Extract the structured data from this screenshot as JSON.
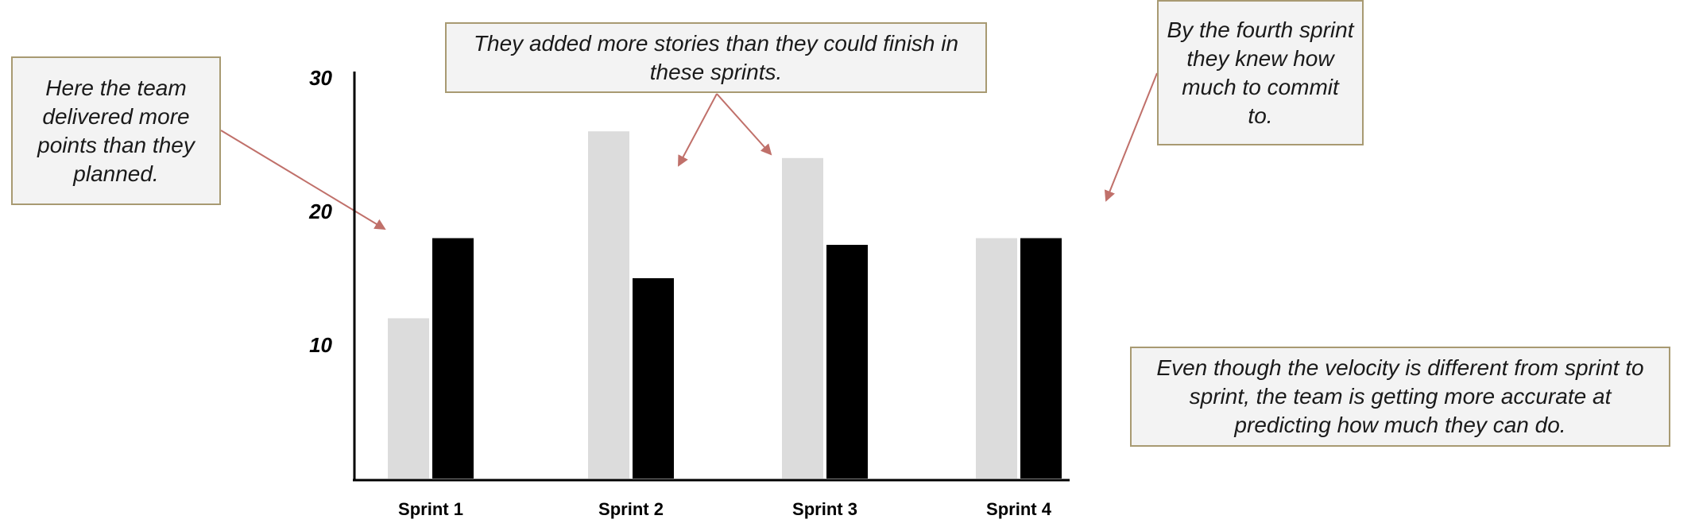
{
  "chart_data": {
    "type": "bar",
    "categories": [
      "Sprint 1",
      "Sprint 2",
      "Sprint 3",
      "Sprint 4"
    ],
    "series": [
      {
        "values": [
          12,
          26,
          24,
          18
        ],
        "color": "#dcdcdc"
      },
      {
        "values": [
          18,
          15,
          17.5,
          18
        ],
        "color": "#000000"
      }
    ],
    "yticks": [
      10,
      20,
      30
    ],
    "ylim": [
      0,
      30
    ],
    "grid": false,
    "legend": "none"
  },
  "annotations": [
    {
      "text": "Here the team delivered more points than they planned."
    },
    {
      "text": "They added more stories than they could finish in these sprints."
    },
    {
      "text": "By the fourth sprint they knew how much to commit to."
    },
    {
      "text": "Even though the velocity is different from sprint to sprint, the team is getting more accurate at predicting how much they can do."
    }
  ],
  "colors": {
    "arrow": "#c0706a",
    "note_border": "#a89a72"
  }
}
